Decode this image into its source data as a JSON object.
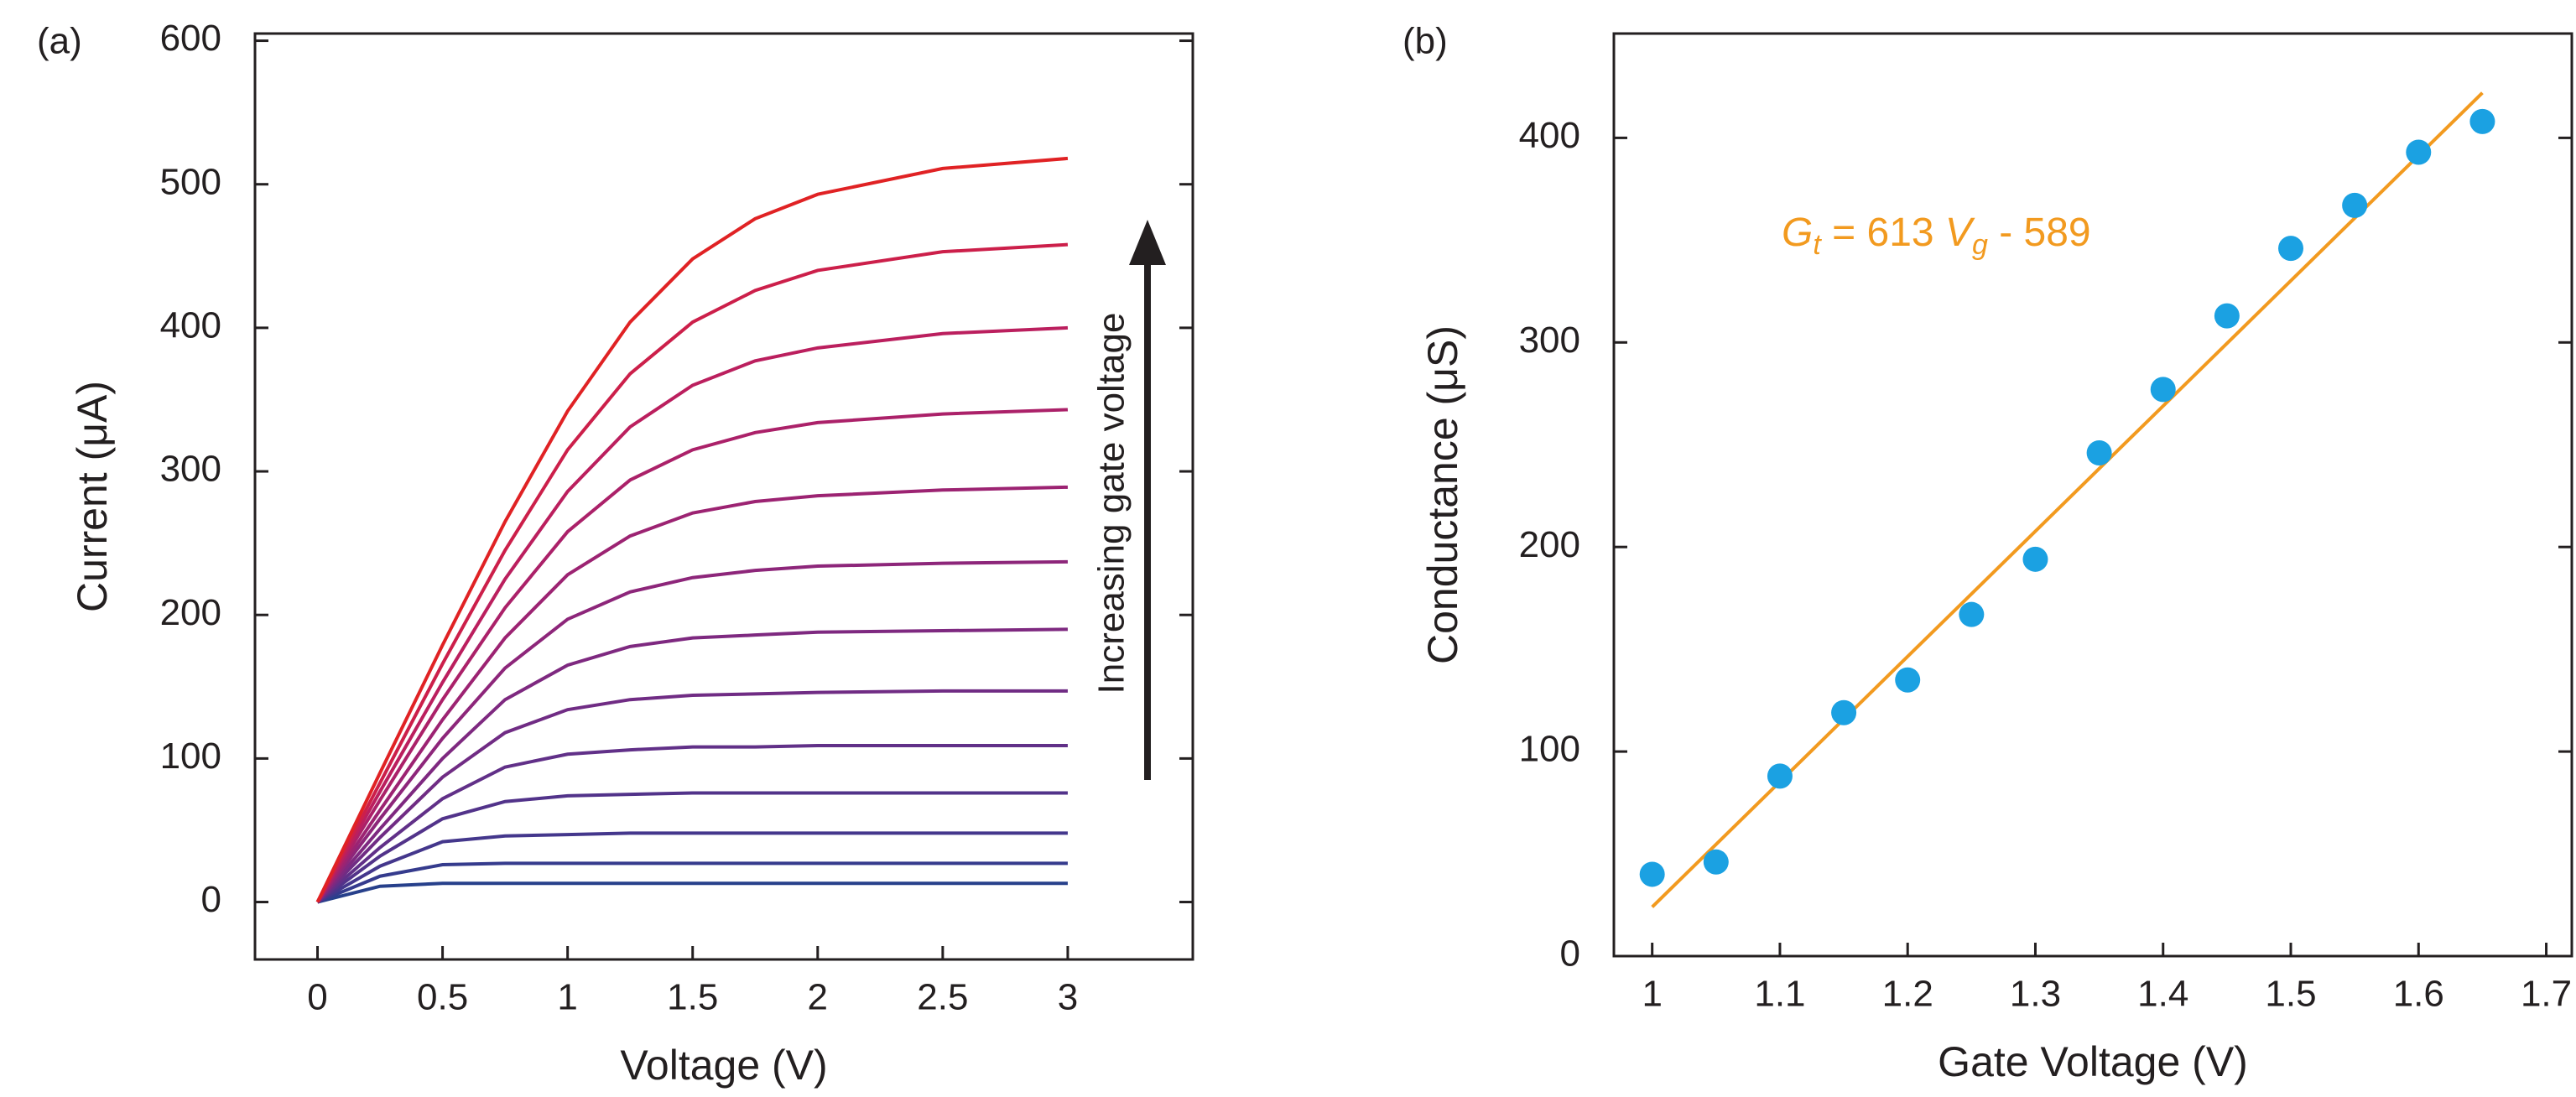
{
  "chart_data": [
    {
      "type": "line",
      "panel_label": "(a)",
      "xlabel": "Voltage (V)",
      "ylabel": "Current (μA)",
      "annotation": "Increasing gate voltage",
      "xlim": [
        -0.25,
        3.5
      ],
      "ylim": [
        -40,
        605
      ],
      "xticks": [
        0,
        0.5,
        1,
        1.5,
        2,
        2.5,
        3
      ],
      "yticks": [
        0,
        100,
        200,
        300,
        400,
        500,
        600
      ],
      "x": [
        0,
        0.25,
        0.5,
        0.75,
        1,
        1.25,
        1.5,
        1.75,
        2,
        2.5,
        3
      ],
      "series": [
        {
          "color": "#27408b",
          "values": [
            0,
            11,
            13,
            13,
            13,
            13,
            13,
            13,
            13,
            13,
            13
          ]
        },
        {
          "color": "#353b8d",
          "values": [
            0,
            18,
            26,
            27,
            27,
            27,
            27,
            27,
            27,
            27,
            27
          ]
        },
        {
          "color": "#44378c",
          "values": [
            0,
            25,
            42,
            46,
            47,
            48,
            48,
            48,
            48,
            48,
            48
          ]
        },
        {
          "color": "#52338a",
          "values": [
            0,
            32,
            58,
            70,
            74,
            75,
            76,
            76,
            76,
            76,
            76
          ]
        },
        {
          "color": "#613088",
          "values": [
            0,
            38,
            72,
            94,
            103,
            106,
            108,
            108,
            109,
            109,
            109
          ]
        },
        {
          "color": "#702c84",
          "values": [
            0,
            45,
            87,
            118,
            134,
            141,
            144,
            145,
            146,
            147,
            147
          ]
        },
        {
          "color": "#7e2980",
          "values": [
            0,
            51,
            100,
            141,
            165,
            178,
            184,
            186,
            188,
            189,
            190
          ]
        },
        {
          "color": "#8d267a",
          "values": [
            0,
            58,
            114,
            163,
            197,
            216,
            226,
            231,
            234,
            236,
            237
          ]
        },
        {
          "color": "#9c2372",
          "values": [
            0,
            64,
            127,
            184,
            228,
            255,
            271,
            279,
            283,
            287,
            289
          ]
        },
        {
          "color": "#ab2169",
          "values": [
            0,
            71,
            141,
            205,
            258,
            294,
            315,
            327,
            334,
            340,
            343
          ]
        },
        {
          "color": "#bb1f5e",
          "values": [
            0,
            77,
            153,
            225,
            286,
            331,
            360,
            377,
            386,
            396,
            400
          ]
        },
        {
          "color": "#cc1f4a",
          "values": [
            0,
            83,
            166,
            245,
            315,
            368,
            404,
            426,
            440,
            453,
            458
          ]
        },
        {
          "color": "#e02224",
          "values": [
            0,
            90,
            179,
            265,
            342,
            404,
            448,
            476,
            493,
            511,
            518
          ]
        }
      ]
    },
    {
      "type": "scatter",
      "panel_label": "(b)",
      "xlabel": "Gate Voltage (V)",
      "ylabel": "Conductance (μS)",
      "annotation": [
        {
          "text": "G",
          "style": "italic"
        },
        {
          "text": "t",
          "style": "sub"
        },
        {
          "text": " = 613 ",
          "style": "normal"
        },
        {
          "text": "V",
          "style": "italic"
        },
        {
          "text": "g",
          "style": "sub"
        },
        {
          "text": " - 589",
          "style": "normal"
        }
      ],
      "xlim": [
        0.97,
        1.72
      ],
      "ylim": [
        0,
        451
      ],
      "xticks": [
        1,
        1.1,
        1.2,
        1.3,
        1.4,
        1.5,
        1.6,
        1.7
      ],
      "yticks": [
        0,
        100,
        200,
        300,
        400
      ],
      "x": [
        1,
        1.05,
        1.1,
        1.15,
        1.2,
        1.25,
        1.3,
        1.35,
        1.4,
        1.45,
        1.5,
        1.55,
        1.6,
        1.65
      ],
      "values": [
        40,
        46,
        88,
        119,
        135,
        167,
        194,
        246,
        277,
        313,
        346,
        367,
        393,
        408
      ],
      "color": "#1ba1e2",
      "fit": {
        "x": [
          1,
          1.65
        ],
        "values": [
          24,
          422
        ],
        "color": "#f29a1f"
      }
    }
  ]
}
